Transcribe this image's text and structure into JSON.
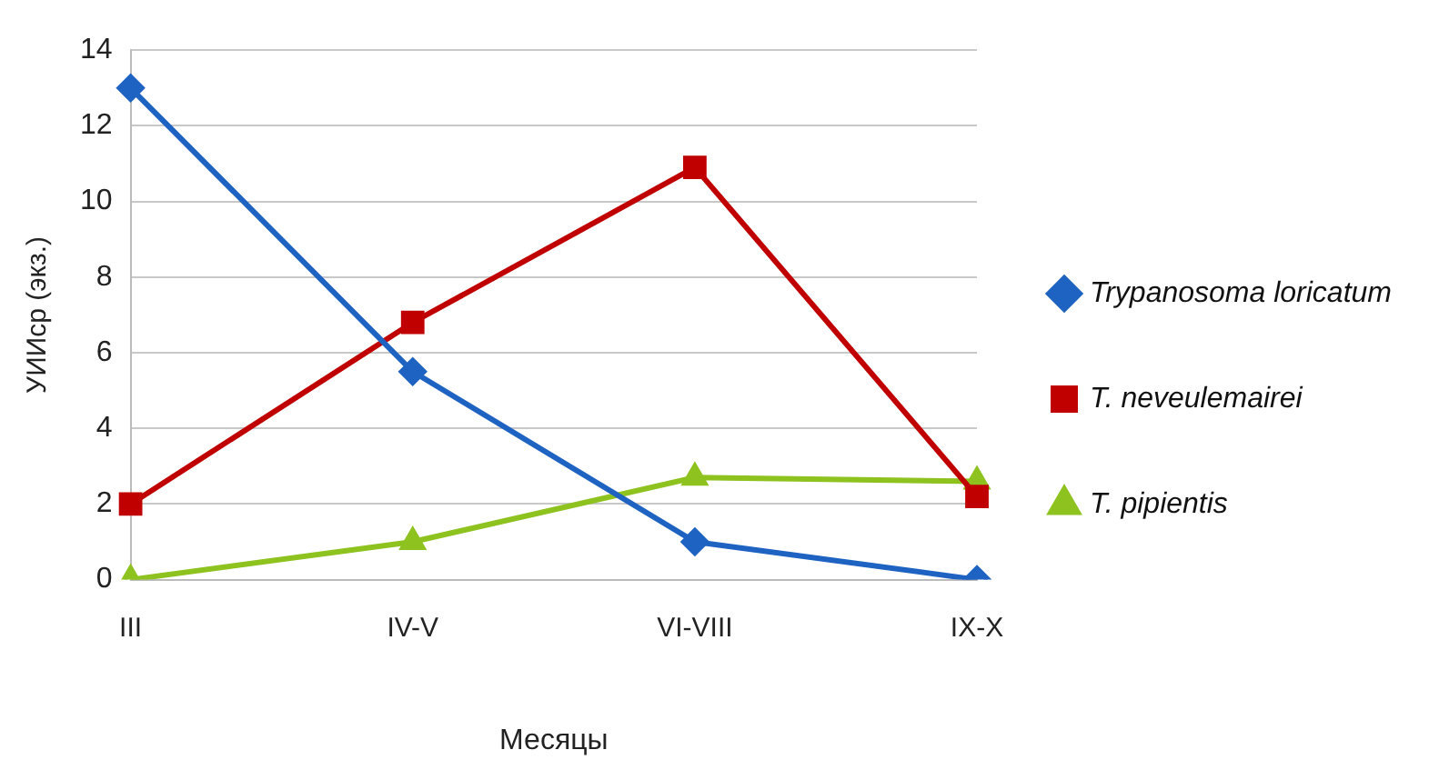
{
  "chart_data": {
    "type": "line",
    "xlabel": "Месяцы",
    "ylabel": "УИИср (экз.)",
    "categories": [
      "III",
      "IV-V",
      "VI-VIII",
      "IX-X"
    ],
    "series": [
      {
        "name": "Trypanosoma loricatum",
        "color": "#1f63c2",
        "marker": "diamond",
        "values": [
          13,
          5.5,
          1,
          0
        ]
      },
      {
        "name": "T. neveulemairei",
        "color": "#c00000",
        "marker": "square",
        "values": [
          2,
          6.8,
          10.9,
          2.2
        ]
      },
      {
        "name": "T. pipientis",
        "color": "#8dc21f",
        "marker": "triangle",
        "values": [
          0,
          1,
          2.7,
          2.6
        ]
      }
    ],
    "ylim": [
      0,
      14
    ],
    "yticks": [
      0,
      2,
      4,
      6,
      8,
      10,
      12,
      14
    ],
    "grid": "y",
    "legend": "right"
  }
}
